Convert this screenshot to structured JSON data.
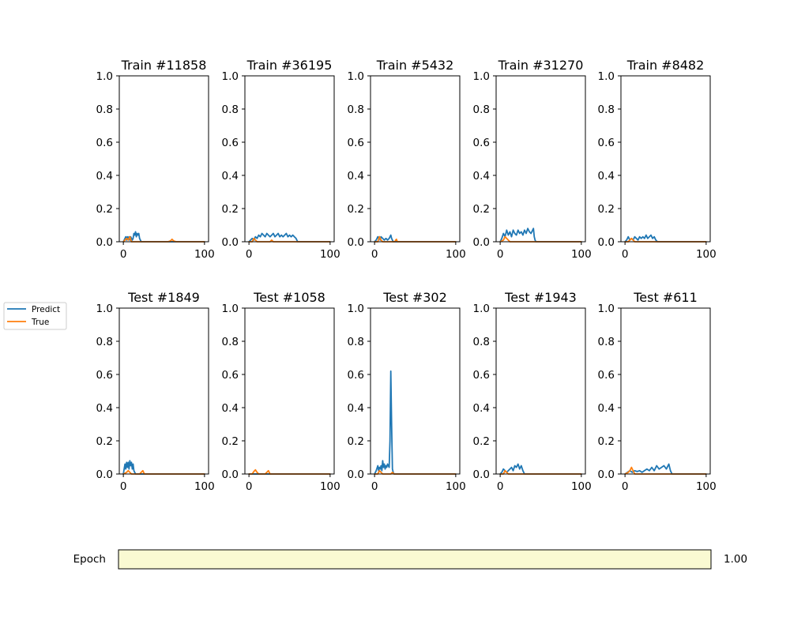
{
  "legend": {
    "items": [
      {
        "label": "Predict",
        "color": "#1f77b4"
      },
      {
        "label": "True",
        "color": "#ff7f0e"
      }
    ]
  },
  "slider": {
    "label": "Epoch",
    "value_text": "1.00",
    "value": 1.0,
    "fill_color": "#fafad2"
  },
  "chart_data": [
    {
      "type": "line",
      "title": "Train #11858",
      "xlim": [
        -5,
        105
      ],
      "ylim": [
        0,
        1
      ],
      "xticks": [
        0,
        100
      ],
      "yticks": [
        0.0,
        0.2,
        0.4,
        0.6,
        0.8,
        1.0
      ],
      "series": [
        {
          "name": "Predict",
          "color": "#1f77b4",
          "x": [
            0,
            1,
            2,
            3,
            4,
            5,
            6,
            7,
            8,
            9,
            10,
            11,
            12,
            13,
            14,
            15,
            16,
            17,
            18,
            19,
            20,
            21,
            22,
            30,
            40,
            50,
            60,
            70,
            80,
            90,
            100
          ],
          "values": [
            0,
            0.01,
            0.02,
            0.03,
            0.01,
            0.03,
            0.02,
            0.03,
            0.01,
            0.03,
            0.02,
            0.01,
            0.02,
            0.05,
            0.04,
            0.06,
            0.03,
            0.05,
            0.04,
            0.05,
            0.02,
            0.01,
            0,
            0,
            0,
            0,
            0,
            0,
            0,
            0,
            0
          ]
        },
        {
          "name": "True",
          "color": "#ff7f0e",
          "x": [
            0,
            2,
            4,
            6,
            8,
            10,
            20,
            55,
            58,
            60,
            62,
            65,
            100
          ],
          "values": [
            0,
            0.01,
            0.02,
            0.01,
            0.03,
            0,
            0,
            0,
            0.005,
            0.015,
            0.005,
            0,
            0
          ]
        }
      ]
    },
    {
      "type": "line",
      "title": "Train #36195",
      "xlim": [
        -5,
        105
      ],
      "ylim": [
        0,
        1
      ],
      "xticks": [
        0,
        100
      ],
      "yticks": [
        0.0,
        0.2,
        0.4,
        0.6,
        0.8,
        1.0
      ],
      "series": [
        {
          "name": "Predict",
          "color": "#1f77b4",
          "x": [
            0,
            2,
            4,
            6,
            8,
            10,
            12,
            14,
            16,
            18,
            20,
            22,
            24,
            26,
            28,
            30,
            32,
            34,
            36,
            38,
            40,
            42,
            44,
            46,
            48,
            50,
            52,
            54,
            56,
            58,
            60,
            100
          ],
          "values": [
            0,
            0.01,
            0.02,
            0.01,
            0.03,
            0.02,
            0.04,
            0.03,
            0.05,
            0.04,
            0.03,
            0.05,
            0.04,
            0.03,
            0.04,
            0.05,
            0.03,
            0.04,
            0.05,
            0.03,
            0.04,
            0.03,
            0.04,
            0.05,
            0.03,
            0.04,
            0.03,
            0.04,
            0.03,
            0.02,
            0,
            0
          ]
        },
        {
          "name": "True",
          "color": "#ff7f0e",
          "x": [
            0,
            4,
            6,
            8,
            10,
            20,
            26,
            28,
            30,
            100
          ],
          "values": [
            0,
            0,
            0.02,
            0.01,
            0,
            0,
            0,
            0.01,
            0,
            0
          ]
        }
      ]
    },
    {
      "type": "line",
      "title": "Train #5432",
      "xlim": [
        -5,
        105
      ],
      "ylim": [
        0,
        1
      ],
      "xticks": [
        0,
        100
      ],
      "yticks": [
        0.0,
        0.2,
        0.4,
        0.6,
        0.8,
        1.0
      ],
      "series": [
        {
          "name": "Predict",
          "color": "#1f77b4",
          "x": [
            0,
            2,
            4,
            5,
            6,
            7,
            8,
            10,
            12,
            14,
            16,
            18,
            20,
            21,
            22,
            23,
            25,
            100
          ],
          "values": [
            0,
            0.01,
            0.03,
            0.02,
            0.03,
            0.01,
            0.03,
            0.02,
            0.01,
            0.02,
            0.01,
            0.02,
            0.04,
            0.02,
            0.01,
            0,
            0,
            0
          ]
        },
        {
          "name": "True",
          "color": "#ff7f0e",
          "x": [
            0,
            4,
            6,
            8,
            10,
            25,
            26,
            27,
            28,
            100
          ],
          "values": [
            0,
            0,
            0.03,
            0.01,
            0,
            0,
            0.01,
            0.015,
            0,
            0
          ]
        }
      ]
    },
    {
      "type": "line",
      "title": "Train #31270",
      "xlim": [
        -5,
        105
      ],
      "ylim": [
        0,
        1
      ],
      "xticks": [
        0,
        100
      ],
      "yticks": [
        0.0,
        0.2,
        0.4,
        0.6,
        0.8,
        1.0
      ],
      "series": [
        {
          "name": "Predict",
          "color": "#1f77b4",
          "x": [
            0,
            2,
            4,
            6,
            8,
            10,
            12,
            14,
            16,
            18,
            20,
            22,
            24,
            26,
            28,
            30,
            32,
            34,
            36,
            38,
            40,
            41,
            42,
            43,
            44,
            100
          ],
          "values": [
            0,
            0.02,
            0.05,
            0.03,
            0.07,
            0.04,
            0.06,
            0.03,
            0.07,
            0.05,
            0.04,
            0.07,
            0.05,
            0.06,
            0.04,
            0.07,
            0.05,
            0.08,
            0.06,
            0.05,
            0.07,
            0.08,
            0.03,
            0.01,
            0,
            0
          ]
        },
        {
          "name": "True",
          "color": "#ff7f0e",
          "x": [
            0,
            4,
            6,
            8,
            10,
            12,
            20,
            100
          ],
          "values": [
            0,
            0.01,
            0.03,
            0.02,
            0.01,
            0,
            0,
            0
          ]
        }
      ]
    },
    {
      "type": "line",
      "title": "Train #8482",
      "xlim": [
        -5,
        105
      ],
      "ylim": [
        0,
        1
      ],
      "xticks": [
        0,
        100
      ],
      "yticks": [
        0.0,
        0.2,
        0.4,
        0.6,
        0.8,
        1.0
      ],
      "series": [
        {
          "name": "Predict",
          "color": "#1f77b4",
          "x": [
            0,
            2,
            4,
            6,
            8,
            10,
            12,
            14,
            16,
            18,
            20,
            22,
            24,
            26,
            28,
            30,
            32,
            34,
            36,
            38,
            40,
            100
          ],
          "values": [
            0,
            0.01,
            0.03,
            0.01,
            0.02,
            0.01,
            0.03,
            0.02,
            0.01,
            0.03,
            0.02,
            0.03,
            0.02,
            0.04,
            0.02,
            0.03,
            0.04,
            0.02,
            0.03,
            0.01,
            0,
            0
          ]
        },
        {
          "name": "True",
          "color": "#ff7f0e",
          "x": [
            0,
            4,
            6,
            8,
            12,
            100
          ],
          "values": [
            0,
            0,
            0.01,
            0.02,
            0,
            0
          ]
        }
      ]
    },
    {
      "type": "line",
      "title": "Test #1849",
      "xlim": [
        -5,
        105
      ],
      "ylim": [
        0,
        1
      ],
      "xticks": [
        0,
        100
      ],
      "yticks": [
        0.0,
        0.2,
        0.4,
        0.6,
        0.8,
        1.0
      ],
      "series": [
        {
          "name": "Predict",
          "color": "#1f77b4",
          "x": [
            0,
            1,
            2,
            3,
            4,
            5,
            6,
            7,
            8,
            9,
            10,
            11,
            12,
            13,
            14,
            15,
            16,
            100
          ],
          "values": [
            0,
            0.03,
            0.06,
            0.03,
            0.07,
            0.04,
            0.07,
            0.03,
            0.08,
            0.05,
            0.07,
            0.03,
            0.06,
            0.02,
            0.01,
            0,
            0,
            0
          ]
        },
        {
          "name": "True",
          "color": "#ff7f0e",
          "x": [
            0,
            4,
            6,
            8,
            10,
            20,
            22,
            24,
            26,
            100
          ],
          "values": [
            0,
            0.01,
            0.02,
            0.01,
            0,
            0,
            0.01,
            0.02,
            0,
            0
          ]
        }
      ]
    },
    {
      "type": "line",
      "title": "Test #1058",
      "xlim": [
        -5,
        105
      ],
      "ylim": [
        0,
        1
      ],
      "xticks": [
        0,
        100
      ],
      "yticks": [
        0.0,
        0.2,
        0.4,
        0.6,
        0.8,
        1.0
      ],
      "series": [
        {
          "name": "Predict",
          "color": "#1f77b4",
          "x": [
            0,
            100
          ],
          "values": [
            0,
            0
          ]
        },
        {
          "name": "True",
          "color": "#ff7f0e",
          "x": [
            0,
            4,
            6,
            8,
            10,
            12,
            20,
            22,
            24,
            26,
            100
          ],
          "values": [
            0,
            0,
            0.015,
            0.025,
            0.01,
            0,
            0,
            0.01,
            0.02,
            0,
            0
          ]
        }
      ]
    },
    {
      "type": "line",
      "title": "Test #302",
      "xlim": [
        -5,
        105
      ],
      "ylim": [
        0,
        1
      ],
      "xticks": [
        0,
        100
      ],
      "yticks": [
        0.0,
        0.2,
        0.4,
        0.6,
        0.8,
        1.0
      ],
      "series": [
        {
          "name": "Predict",
          "color": "#1f77b4",
          "x": [
            0,
            2,
            4,
            5,
            6,
            7,
            8,
            9,
            10,
            11,
            12,
            13,
            14,
            15,
            16,
            17,
            18,
            19,
            20,
            21,
            22,
            23,
            24,
            100
          ],
          "values": [
            0,
            0.02,
            0.05,
            0.02,
            0.04,
            0.03,
            0.05,
            0.02,
            0.08,
            0.04,
            0.06,
            0.03,
            0.05,
            0.04,
            0.06,
            0.05,
            0.04,
            0.2,
            0.62,
            0.3,
            0.03,
            0.01,
            0,
            0
          ]
        },
        {
          "name": "True",
          "color": "#ff7f0e",
          "x": [
            0,
            4,
            6,
            8,
            10,
            20,
            22,
            24,
            100
          ],
          "values": [
            0,
            0,
            0.02,
            0.01,
            0,
            0,
            0.01,
            0,
            0
          ]
        }
      ]
    },
    {
      "type": "line",
      "title": "Test #1943",
      "xlim": [
        -5,
        105
      ],
      "ylim": [
        0,
        1
      ],
      "xticks": [
        0,
        100
      ],
      "yticks": [
        0.0,
        0.2,
        0.4,
        0.6,
        0.8,
        1.0
      ],
      "series": [
        {
          "name": "Predict",
          "color": "#1f77b4",
          "x": [
            0,
            2,
            4,
            6,
            8,
            10,
            12,
            14,
            16,
            18,
            20,
            22,
            24,
            26,
            28,
            30,
            100
          ],
          "values": [
            0,
            0.01,
            0.03,
            0.02,
            0.01,
            0.02,
            0.03,
            0.04,
            0.02,
            0.05,
            0.04,
            0.06,
            0.03,
            0.05,
            0.02,
            0,
            0
          ]
        },
        {
          "name": "True",
          "color": "#ff7f0e",
          "x": [
            0,
            4,
            6,
            8,
            10,
            100
          ],
          "values": [
            0,
            0,
            0.02,
            0.01,
            0,
            0
          ]
        }
      ]
    },
    {
      "type": "line",
      "title": "Test #611",
      "xlim": [
        -5,
        105
      ],
      "ylim": [
        0,
        1
      ],
      "xticks": [
        0,
        100
      ],
      "yticks": [
        0.0,
        0.2,
        0.4,
        0.6,
        0.8,
        1.0
      ],
      "series": [
        {
          "name": "Predict",
          "color": "#1f77b4",
          "x": [
            0,
            3,
            6,
            9,
            12,
            15,
            18,
            21,
            24,
            27,
            30,
            33,
            36,
            39,
            42,
            45,
            48,
            51,
            54,
            56,
            58,
            100
          ],
          "values": [
            0,
            0.01,
            0.02,
            0.01,
            0.02,
            0.015,
            0.02,
            0.01,
            0.02,
            0.03,
            0.02,
            0.04,
            0.02,
            0.05,
            0.03,
            0.04,
            0.05,
            0.03,
            0.06,
            0.02,
            0,
            0
          ]
        },
        {
          "name": "True",
          "color": "#ff7f0e",
          "x": [
            0,
            4,
            6,
            8,
            10,
            12,
            100
          ],
          "values": [
            0,
            0.01,
            0.02,
            0.04,
            0.02,
            0,
            0
          ]
        }
      ]
    }
  ]
}
